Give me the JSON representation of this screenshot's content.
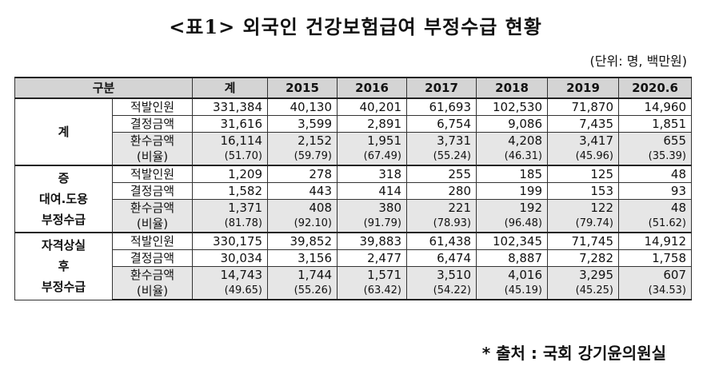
{
  "title": "<표1> 외국인 건강보험급여 부정수급 현황",
  "unit_note": "(단위: 명, 백만원)",
  "header": {
    "category": "구분",
    "columns": [
      "계",
      "2015",
      "2016",
      "2017",
      "2018",
      "2019",
      "2020.6"
    ]
  },
  "groups": [
    {
      "name_lines": [
        "계"
      ],
      "rows": [
        {
          "label": "적발인원",
          "values": [
            "331,384",
            "40,130",
            "40,201",
            "61,693",
            "102,530",
            "71,870",
            "14,960"
          ]
        },
        {
          "label": "결정금액",
          "values": [
            "31,616",
            "3,599",
            "2,891",
            "6,754",
            "9,086",
            "7,435",
            "1,851"
          ]
        },
        {
          "label": "환수금액",
          "values": [
            "16,114",
            "2,152",
            "1,951",
            "3,731",
            "4,208",
            "3,417",
            "655"
          ]
        },
        {
          "label": "(비율)",
          "values": [
            "(51.70)",
            "(59.79)",
            "(67.49)",
            "(55.24)",
            "(46.31)",
            "(45.96)",
            "(35.39)"
          ]
        }
      ]
    },
    {
      "name_lines": [
        "증",
        "대여.도용",
        "부정수급"
      ],
      "rows": [
        {
          "label": "적발인원",
          "values": [
            "1,209",
            "278",
            "318",
            "255",
            "185",
            "125",
            "48"
          ]
        },
        {
          "label": "결정금액",
          "values": [
            "1,582",
            "443",
            "414",
            "280",
            "199",
            "153",
            "93"
          ]
        },
        {
          "label": "환수금액",
          "values": [
            "1,371",
            "408",
            "380",
            "221",
            "192",
            "122",
            "48"
          ]
        },
        {
          "label": "(비율)",
          "values": [
            "(81.78)",
            "(92.10)",
            "(91.79)",
            "(78.93)",
            "(96.48)",
            "(79.74)",
            "(51.62)"
          ]
        }
      ]
    },
    {
      "name_lines": [
        "자격상실",
        "후",
        "부정수급"
      ],
      "rows": [
        {
          "label": "적발인원",
          "values": [
            "330,175",
            "39,852",
            "39,883",
            "61,438",
            "102,345",
            "71,745",
            "14,912"
          ]
        },
        {
          "label": "결정금액",
          "values": [
            "30,034",
            "3,156",
            "2,477",
            "6,474",
            "8,887",
            "7,282",
            "1,758"
          ]
        },
        {
          "label": "환수금액",
          "values": [
            "14,743",
            "1,744",
            "1,571",
            "3,510",
            "4,016",
            "3,295",
            "607"
          ]
        },
        {
          "label": "(비율)",
          "values": [
            "(49.65)",
            "(55.26)",
            "(63.42)",
            "(54.22)",
            "(45.19)",
            "(45.25)",
            "(34.53)"
          ]
        }
      ]
    }
  ],
  "source": "* 출처 : 국회 강기윤의원실"
}
